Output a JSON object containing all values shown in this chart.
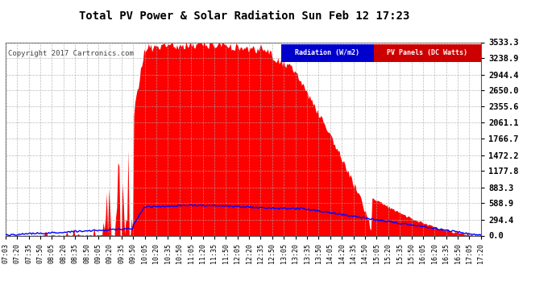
{
  "title": "Total PV Power & Solar Radiation Sun Feb 12 17:23",
  "copyright": "Copyright 2017 Cartronics.com",
  "yticks": [
    0.0,
    294.4,
    588.9,
    883.3,
    1177.8,
    1472.2,
    1766.7,
    2061.1,
    2355.6,
    2650.0,
    2944.4,
    3238.9,
    3533.3
  ],
  "ymax": 3533.3,
  "bg_color": "#ffffff",
  "grid_color": "#aaaaaa",
  "pv_color": "#ff0000",
  "rad_color": "#0000ff",
  "xtick_labels": [
    "07:03",
    "07:20",
    "07:35",
    "07:50",
    "08:05",
    "08:20",
    "08:35",
    "08:50",
    "09:05",
    "09:20",
    "09:35",
    "09:50",
    "10:05",
    "10:20",
    "10:35",
    "10:50",
    "11:05",
    "11:20",
    "11:35",
    "11:50",
    "12:05",
    "12:20",
    "12:35",
    "12:50",
    "13:05",
    "13:20",
    "13:35",
    "13:50",
    "14:05",
    "14:20",
    "14:35",
    "14:50",
    "15:05",
    "15:20",
    "15:35",
    "15:50",
    "16:05",
    "16:20",
    "16:35",
    "16:50",
    "17:05",
    "17:20"
  ],
  "legend_blue_label": "Radiation (W/m2)",
  "legend_red_label": "PV Panels (DC Watts)",
  "legend_blue_color": "#0000cc",
  "legend_red_color": "#cc0000"
}
